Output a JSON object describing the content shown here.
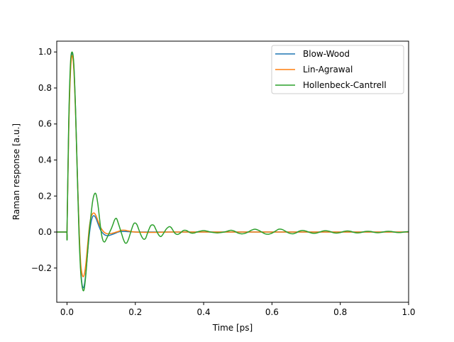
{
  "chart_data": {
    "type": "line",
    "title": "",
    "xlabel": "Time [ps]",
    "ylabel": "Raman response [a.u.]",
    "xlim": [
      -0.03,
      1.0
    ],
    "ylim": [
      -0.39,
      1.06
    ],
    "xticks": [
      0.0,
      0.2,
      0.4,
      0.6,
      0.8,
      1.0
    ],
    "xtick_labels": [
      "0.0",
      "0.2",
      "0.4",
      "0.6",
      "0.8",
      "1.0"
    ],
    "yticks": [
      -0.2,
      0.0,
      0.2,
      0.4,
      0.6,
      0.8,
      1.0
    ],
    "ytick_labels": [
      "−0.2",
      "0.0",
      "0.2",
      "0.4",
      "0.6",
      "0.8",
      "1.0"
    ],
    "grid": false,
    "legend_position": "top-right",
    "series": [
      {
        "name": "Blow-Wood",
        "color": "#1f77b4",
        "x": [
          -0.03,
          -0.002,
          0.0,
          0.005,
          0.01,
          0.015,
          0.02,
          0.025,
          0.03,
          0.035,
          0.04,
          0.045,
          0.05,
          0.055,
          0.06,
          0.065,
          0.07,
          0.075,
          0.08,
          0.085,
          0.09,
          0.095,
          0.1,
          0.11,
          0.12,
          0.13,
          0.14,
          0.15,
          0.16,
          0.17,
          0.18,
          0.2,
          0.25,
          0.3,
          0.4,
          0.6,
          0.8,
          1.0
        ],
        "y": [
          0.0,
          0.0,
          0.0,
          0.58,
          0.9,
          0.995,
          0.92,
          0.68,
          0.35,
          0.03,
          -0.2,
          -0.3,
          -0.3,
          -0.23,
          -0.12,
          -0.02,
          0.05,
          0.085,
          0.09,
          0.075,
          0.05,
          0.025,
          0.005,
          -0.015,
          -0.02,
          -0.015,
          -0.008,
          0.0,
          0.003,
          0.003,
          0.002,
          0.0,
          0.0,
          0.0,
          0.0,
          0.0,
          0.0,
          0.0
        ]
      },
      {
        "name": "Lin-Agrawal",
        "color": "#ff7f0e",
        "x": [
          -0.03,
          -0.002,
          0.0,
          0.005,
          0.01,
          0.015,
          0.02,
          0.025,
          0.03,
          0.035,
          0.04,
          0.045,
          0.05,
          0.055,
          0.06,
          0.065,
          0.07,
          0.075,
          0.08,
          0.085,
          0.09,
          0.095,
          0.1,
          0.11,
          0.12,
          0.13,
          0.14,
          0.15,
          0.16,
          0.17,
          0.18,
          0.2,
          0.25,
          0.3,
          0.4,
          0.6,
          0.8,
          1.0
        ],
        "y": [
          0.0,
          0.0,
          0.0,
          0.55,
          0.88,
          0.98,
          0.9,
          0.66,
          0.34,
          0.04,
          -0.17,
          -0.24,
          -0.24,
          -0.18,
          -0.08,
          0.02,
          0.08,
          0.102,
          0.105,
          0.09,
          0.065,
          0.04,
          0.02,
          -0.003,
          -0.01,
          -0.008,
          -0.003,
          0.003,
          0.01,
          0.01,
          0.006,
          0.0,
          -0.002,
          0.0,
          0.0,
          0.0,
          0.0,
          0.0
        ]
      },
      {
        "name": "Hollenbeck-Cantrell",
        "color": "#2ca02c",
        "x": [
          -0.03,
          -0.002,
          0.0,
          0.005,
          0.01,
          0.015,
          0.02,
          0.025,
          0.03,
          0.035,
          0.04,
          0.045,
          0.05,
          0.055,
          0.06,
          0.065,
          0.07,
          0.075,
          0.08,
          0.085,
          0.09,
          0.095,
          0.1,
          0.105,
          0.11,
          0.115,
          0.12,
          0.125,
          0.13,
          0.135,
          0.14,
          0.145,
          0.15,
          0.155,
          0.16,
          0.165,
          0.17,
          0.175,
          0.18,
          0.185,
          0.19,
          0.195,
          0.2,
          0.205,
          0.21,
          0.215,
          0.22,
          0.225,
          0.23,
          0.235,
          0.24,
          0.245,
          0.25,
          0.255,
          0.26,
          0.265,
          0.27,
          0.275,
          0.28,
          0.285,
          0.29,
          0.295,
          0.3,
          0.305,
          0.31,
          0.315,
          0.32,
          0.325,
          0.33,
          0.335,
          0.34,
          0.345,
          0.35,
          0.355,
          0.36,
          0.365,
          0.37,
          0.375,
          0.38,
          0.39,
          0.4,
          0.41,
          0.42,
          0.43,
          0.44,
          0.45,
          0.46,
          0.47,
          0.48,
          0.49,
          0.5,
          0.51,
          0.52,
          0.53,
          0.54,
          0.55,
          0.56,
          0.57,
          0.58,
          0.59,
          0.6,
          0.61,
          0.62,
          0.63,
          0.64,
          0.65,
          0.66,
          0.67,
          0.68,
          0.69,
          0.7,
          0.71,
          0.72,
          0.73,
          0.74,
          0.75,
          0.76,
          0.77,
          0.78,
          0.79,
          0.8,
          0.81,
          0.82,
          0.83,
          0.84,
          0.85,
          0.86,
          0.87,
          0.88,
          0.89,
          0.9,
          0.91,
          0.92,
          0.93,
          0.94,
          0.95,
          0.96,
          0.97,
          0.98,
          0.99,
          1.0
        ],
        "y": [
          0.0,
          0.0,
          0.0,
          0.6,
          0.93,
          1.0,
          0.93,
          0.68,
          0.33,
          0.0,
          -0.22,
          -0.31,
          -0.32,
          -0.24,
          -0.12,
          0.0,
          0.09,
          0.17,
          0.21,
          0.21,
          0.16,
          0.08,
          0.0,
          -0.045,
          -0.055,
          -0.04,
          -0.02,
          0.0,
          0.02,
          0.045,
          0.07,
          0.075,
          0.05,
          0.02,
          -0.01,
          -0.04,
          -0.06,
          -0.06,
          -0.04,
          -0.01,
          0.02,
          0.045,
          0.05,
          0.04,
          0.015,
          -0.01,
          -0.03,
          -0.04,
          -0.035,
          -0.01,
          0.015,
          0.035,
          0.04,
          0.035,
          0.015,
          -0.005,
          -0.02,
          -0.025,
          -0.015,
          0.0,
          0.015,
          0.025,
          0.03,
          0.025,
          0.01,
          -0.005,
          -0.012,
          -0.013,
          -0.008,
          0.0,
          0.008,
          0.01,
          0.008,
          0.003,
          -0.003,
          -0.006,
          -0.006,
          -0.004,
          0.0,
          0.005,
          0.008,
          0.005,
          0.0,
          -0.003,
          -0.005,
          -0.003,
          0.0,
          0.005,
          0.01,
          0.005,
          -0.005,
          -0.01,
          -0.008,
          0.0,
          0.01,
          0.016,
          0.01,
          0.0,
          -0.01,
          -0.012,
          -0.006,
          0.005,
          0.016,
          0.014,
          0.004,
          -0.006,
          -0.01,
          -0.005,
          0.005,
          0.009,
          0.005,
          -0.002,
          -0.007,
          -0.006,
          0.0,
          0.006,
          0.007,
          0.003,
          -0.004,
          -0.006,
          -0.003,
          0.003,
          0.006,
          0.004,
          -0.002,
          -0.005,
          -0.003,
          0.002,
          0.004,
          0.003,
          -0.002,
          -0.004,
          -0.002,
          0.002,
          0.004,
          0.003,
          -0.001,
          -0.003,
          -0.002,
          0.001,
          0.002
        ]
      }
    ]
  }
}
